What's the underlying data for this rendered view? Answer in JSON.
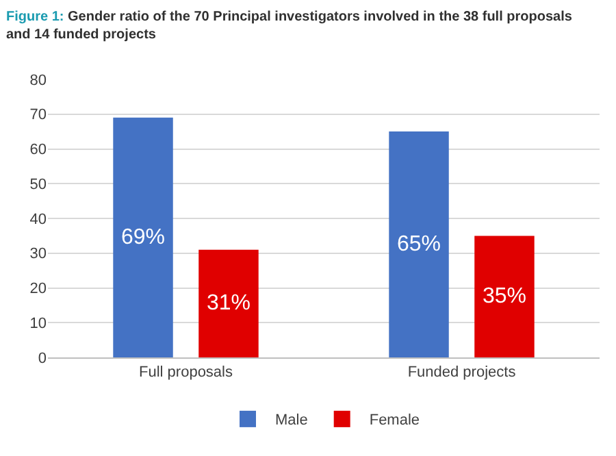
{
  "chart_data": {
    "type": "bar",
    "title": "Figure 1: Gender ratio of the 70 Principal investigators involved in the 38 full proposals and 14 funded projects",
    "categories": [
      "Full proposals",
      "Funded projects"
    ],
    "series": [
      {
        "name": "Male",
        "color": "#4472c4",
        "values": [
          69,
          65
        ],
        "value_labels": [
          "69%",
          "65%"
        ]
      },
      {
        "name": "Female",
        "color": "#e00000",
        "values": [
          31,
          35
        ],
        "value_labels": [
          "31%",
          "35%"
        ]
      }
    ],
    "ylim": [
      0,
      80
    ],
    "yticks": [
      0,
      10,
      20,
      30,
      40,
      50,
      60,
      70,
      80
    ],
    "grid": "y",
    "legend": "bottom"
  }
}
